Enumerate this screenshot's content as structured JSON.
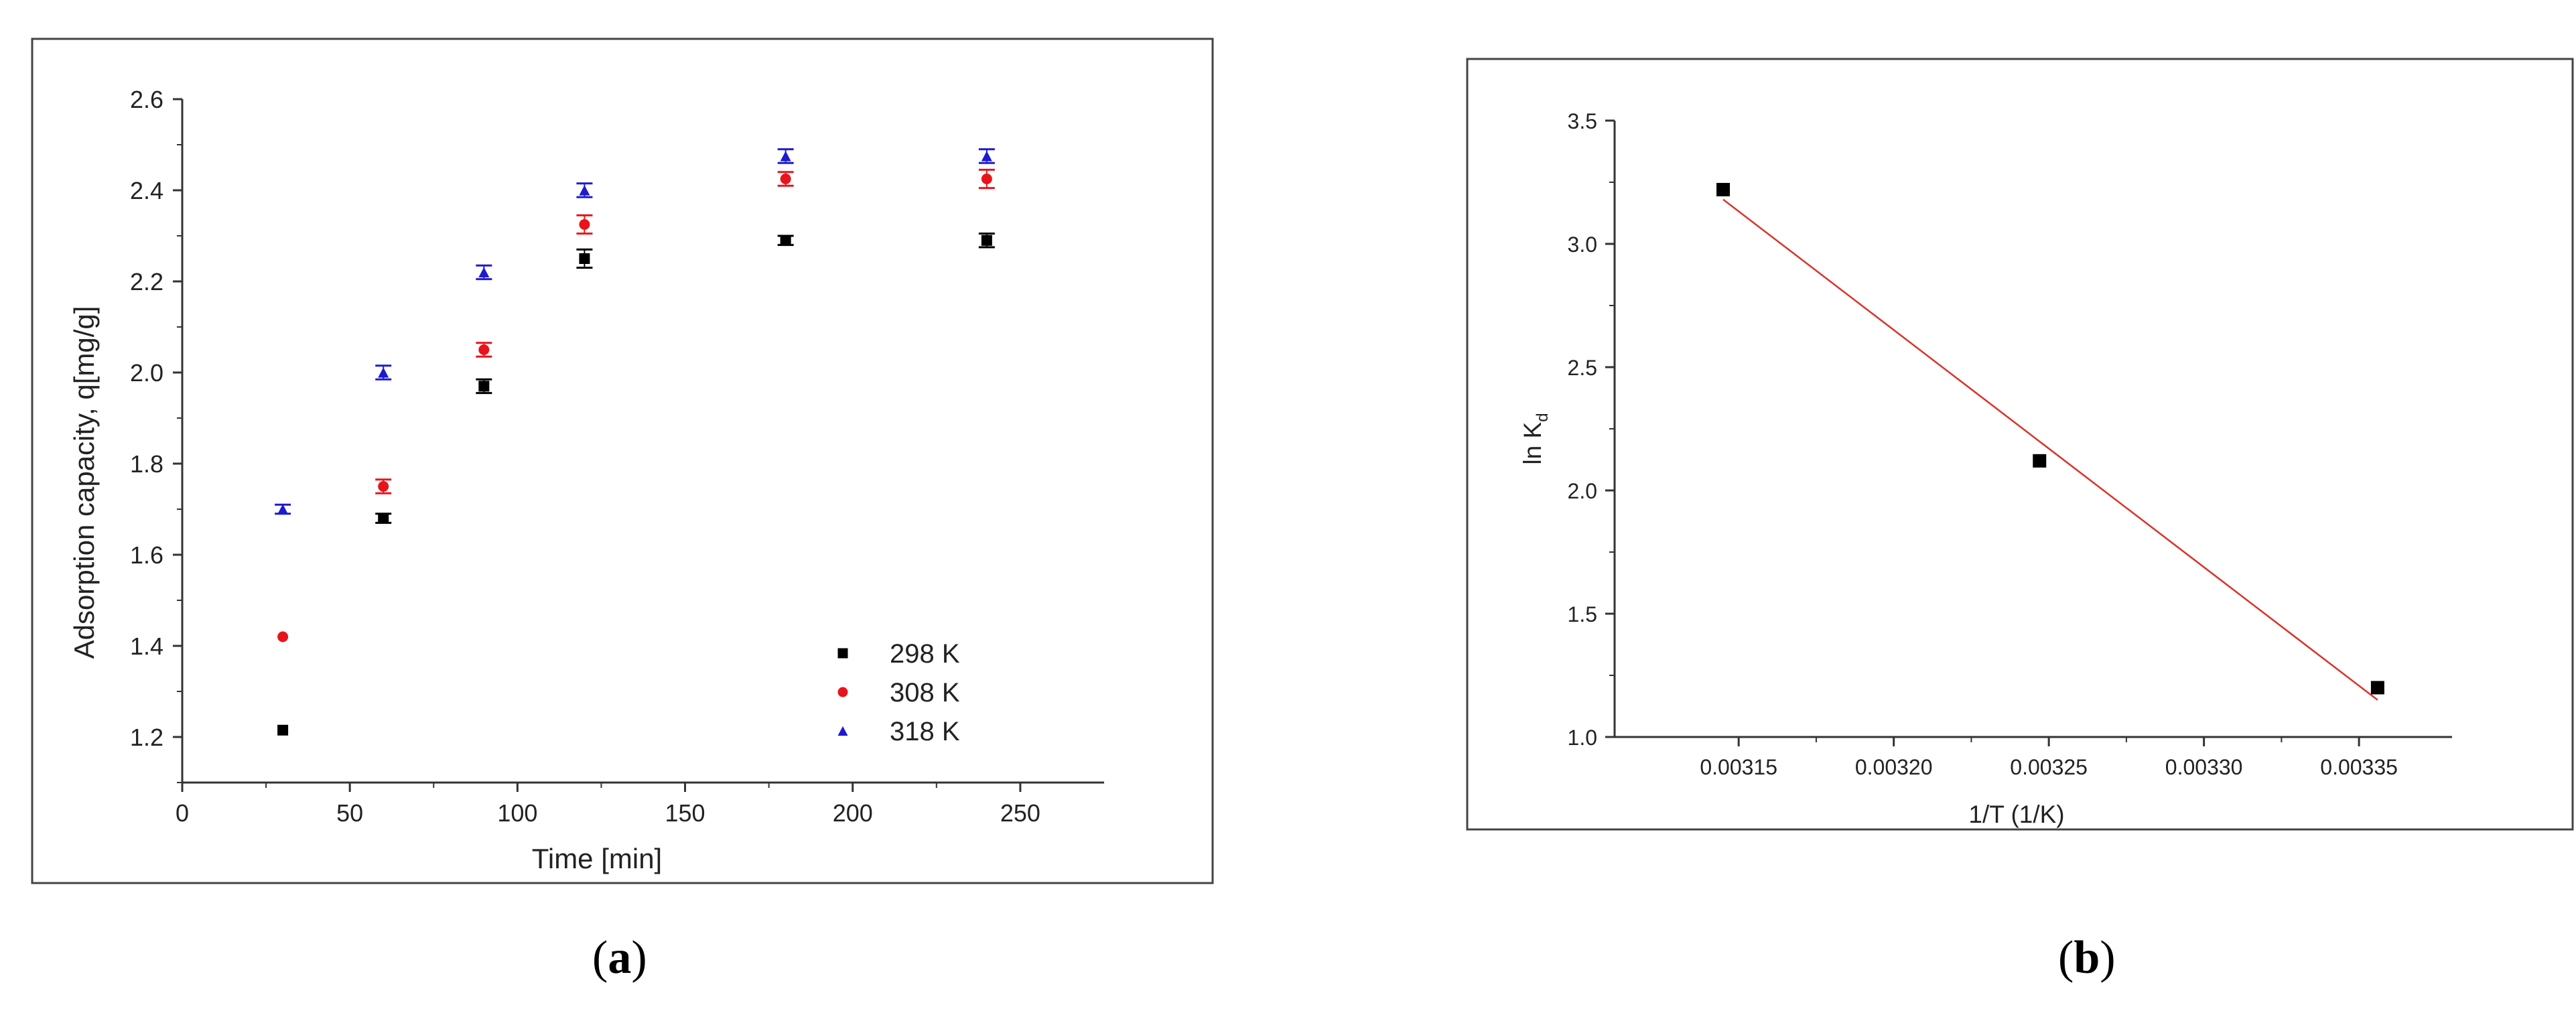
{
  "chart_data": [
    {
      "type": "scatter",
      "xlabel": "Time [min]",
      "ylabel": "Adsorption capacity, q[mg/g]",
      "xlim": [
        0,
        275
      ],
      "ylim": [
        1.1,
        2.6
      ],
      "xticks": [
        0,
        50,
        100,
        150,
        200,
        250
      ],
      "yticks": [
        1.2,
        1.4,
        1.6,
        1.8,
        2.0,
        2.2,
        2.4,
        2.6
      ],
      "xtick_labels": [
        "0",
        "50",
        "100",
        "150",
        "200",
        "250"
      ],
      "ytick_labels": [
        "1.2",
        "1.4",
        "1.6",
        "1.8",
        "2.0",
        "2.2",
        "2.4",
        "2.6"
      ],
      "grid": false,
      "legend_position": "bottom-right",
      "x": [
        30,
        60,
        90,
        120,
        180,
        240
      ],
      "series": [
        {
          "name": "298 K",
          "color": "#000000",
          "marker": "square",
          "values": [
            1.215,
            1.68,
            1.97,
            2.25,
            2.29,
            2.29
          ],
          "errors": [
            0,
            0.01,
            0.015,
            0.02,
            0.01,
            0.015
          ]
        },
        {
          "name": "308 K",
          "color": "#e8141b",
          "marker": "circle",
          "values": [
            1.42,
            1.75,
            2.05,
            2.325,
            2.425,
            2.425
          ],
          "errors": [
            0,
            0.015,
            0.015,
            0.02,
            0.015,
            0.02
          ]
        },
        {
          "name": "318 K",
          "color": "#1d1ad0",
          "marker": "triangle",
          "values": [
            1.7,
            2.0,
            2.22,
            2.4,
            2.475,
            2.475
          ],
          "errors": [
            0.01,
            0.015,
            0.015,
            0.015,
            0.015,
            0.015
          ]
        }
      ]
    },
    {
      "type": "scatter",
      "xlabel": "1/T (1/K)",
      "ylabel": "ln K",
      "ylabel_sub": "d",
      "xlim": [
        0.00311,
        0.00338
      ],
      "ylim": [
        1.0,
        3.5
      ],
      "xticks": [
        0.00315,
        0.0032,
        0.00325,
        0.0033,
        0.00335
      ],
      "yticks": [
        1.0,
        1.5,
        2.0,
        2.5,
        3.0,
        3.5
      ],
      "xtick_labels": [
        "0.00315",
        "0.00320",
        "0.00325",
        "0.00330",
        "0.00335"
      ],
      "ytick_labels": [
        "1.0",
        "1.5",
        "2.0",
        "2.5",
        "3.0",
        "3.5"
      ],
      "grid": false,
      "points": {
        "x": [
          0.003145,
          0.003247,
          0.003356
        ],
        "y": [
          3.22,
          2.12,
          1.2
        ]
      },
      "fit_line": {
        "color": "#d9342b",
        "x": [
          0.003145,
          0.003356
        ],
        "y": [
          3.18,
          1.15
        ]
      }
    }
  ],
  "captions": {
    "a": "a",
    "b": "b"
  }
}
